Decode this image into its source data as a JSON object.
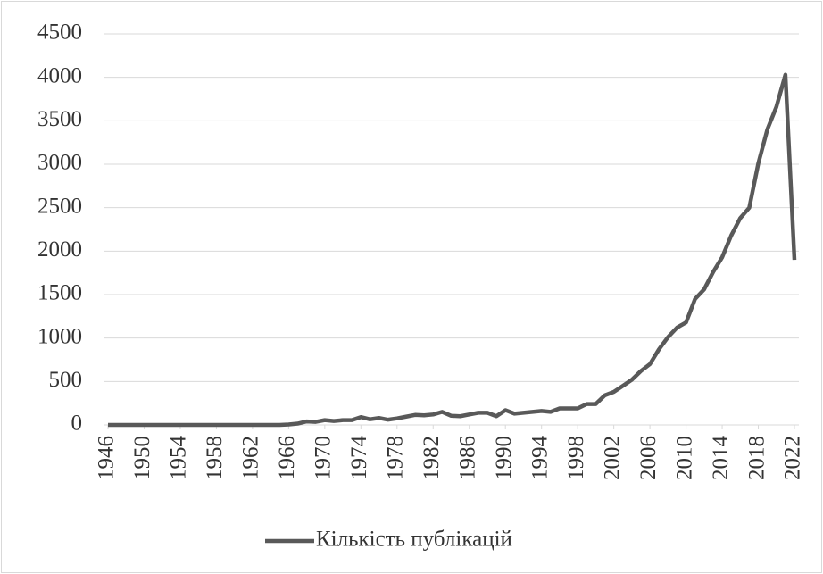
{
  "chart_data": {
    "type": "line",
    "x": [
      1946,
      1947,
      1948,
      1949,
      1950,
      1951,
      1952,
      1953,
      1954,
      1955,
      1956,
      1957,
      1958,
      1959,
      1960,
      1961,
      1962,
      1963,
      1964,
      1965,
      1966,
      1967,
      1968,
      1969,
      1970,
      1971,
      1972,
      1973,
      1974,
      1975,
      1976,
      1977,
      1978,
      1979,
      1980,
      1981,
      1982,
      1983,
      1984,
      1985,
      1986,
      1987,
      1988,
      1989,
      1990,
      1991,
      1992,
      1993,
      1994,
      1995,
      1996,
      1997,
      1998,
      1999,
      2000,
      2001,
      2002,
      2003,
      2004,
      2005,
      2006,
      2007,
      2008,
      2009,
      2010,
      2011,
      2012,
      2013,
      2014,
      2015,
      2016,
      2017,
      2018,
      2019,
      2020,
      2021,
      2022
    ],
    "series": [
      {
        "name": "Кількість публікацій",
        "color": "#595959",
        "values": [
          0,
          0,
          0,
          0,
          0,
          0,
          0,
          0,
          0,
          0,
          0,
          0,
          0,
          0,
          0,
          0,
          0,
          0,
          0,
          0,
          5,
          15,
          40,
          35,
          55,
          45,
          55,
          55,
          90,
          65,
          80,
          60,
          75,
          95,
          115,
          110,
          120,
          150,
          105,
          100,
          120,
          140,
          140,
          100,
          170,
          130,
          140,
          150,
          160,
          150,
          190,
          190,
          190,
          240,
          240,
          340,
          380,
          450,
          520,
          620,
          700,
          870,
          1010,
          1120,
          1180,
          1450,
          1560,
          1760,
          1930,
          2180,
          2380,
          2500,
          3010,
          3400,
          3660,
          4030,
          1900
        ]
      }
    ],
    "xlim": [
      1946,
      2022
    ],
    "xticks": [
      1946,
      1950,
      1954,
      1958,
      1962,
      1966,
      1970,
      1974,
      1978,
      1982,
      1986,
      1990,
      1994,
      1998,
      2002,
      2006,
      2010,
      2014,
      2018,
      2022
    ],
    "ylim": [
      0,
      4500
    ],
    "yticks": [
      0,
      500,
      1000,
      1500,
      2000,
      2500,
      3000,
      3500,
      4000,
      4500
    ],
    "grid": true,
    "legend": "bottom"
  }
}
